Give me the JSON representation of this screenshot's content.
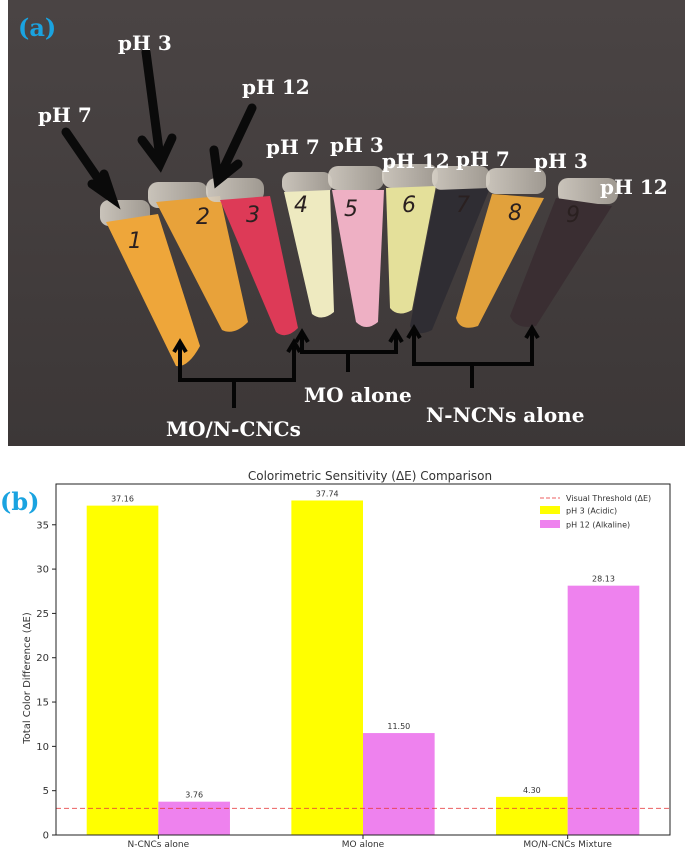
{
  "panel_a": {
    "letter": "(a)",
    "tube_labels": [
      "pH 7",
      "pH 3",
      "pH 12",
      "pH 7",
      "pH 3",
      "pH 12",
      "pH 7",
      "pH 3",
      "pH 12"
    ],
    "groups": [
      "MO/N-CNCs",
      "MO alone",
      "N-NCNs alone"
    ],
    "tube_numbers": [
      "1",
      "2",
      "3",
      "4",
      "5",
      "6",
      "7",
      "8",
      "9"
    ]
  },
  "panel_b": {
    "letter": "(b)"
  },
  "colors": {
    "acidic": "#ffff00",
    "alkaline": "#ee82ee",
    "threshold": "#e8383a",
    "panel_letter": "#1aa3e0"
  },
  "chart_data": {
    "type": "bar",
    "title": "Colorimetric Sensitivity (ΔE) Comparison",
    "ylabel": "Total Color Difference (ΔE)",
    "xlabel": "",
    "categories": [
      "N-CNCs alone",
      "MO alone",
      "MO/N-CNCs Mixture"
    ],
    "series": [
      {
        "name": "pH 3 (Acidic)",
        "values": [
          37.16,
          37.74,
          4.3
        ],
        "labels": [
          "37.16",
          "37.74",
          "4.30"
        ]
      },
      {
        "name": "pH 12 (Alkaline)",
        "values": [
          3.76,
          11.5,
          28.13
        ],
        "labels": [
          "3.76",
          "11.50",
          "28.13"
        ]
      }
    ],
    "threshold": {
      "name": "Visual Threshold (ΔE)",
      "value": 3
    },
    "ylim": [
      0,
      39.6
    ],
    "yticks": [
      "0",
      "5",
      "10",
      "15",
      "20",
      "25",
      "30",
      "35"
    ],
    "grid": false,
    "legend": "top-right"
  }
}
